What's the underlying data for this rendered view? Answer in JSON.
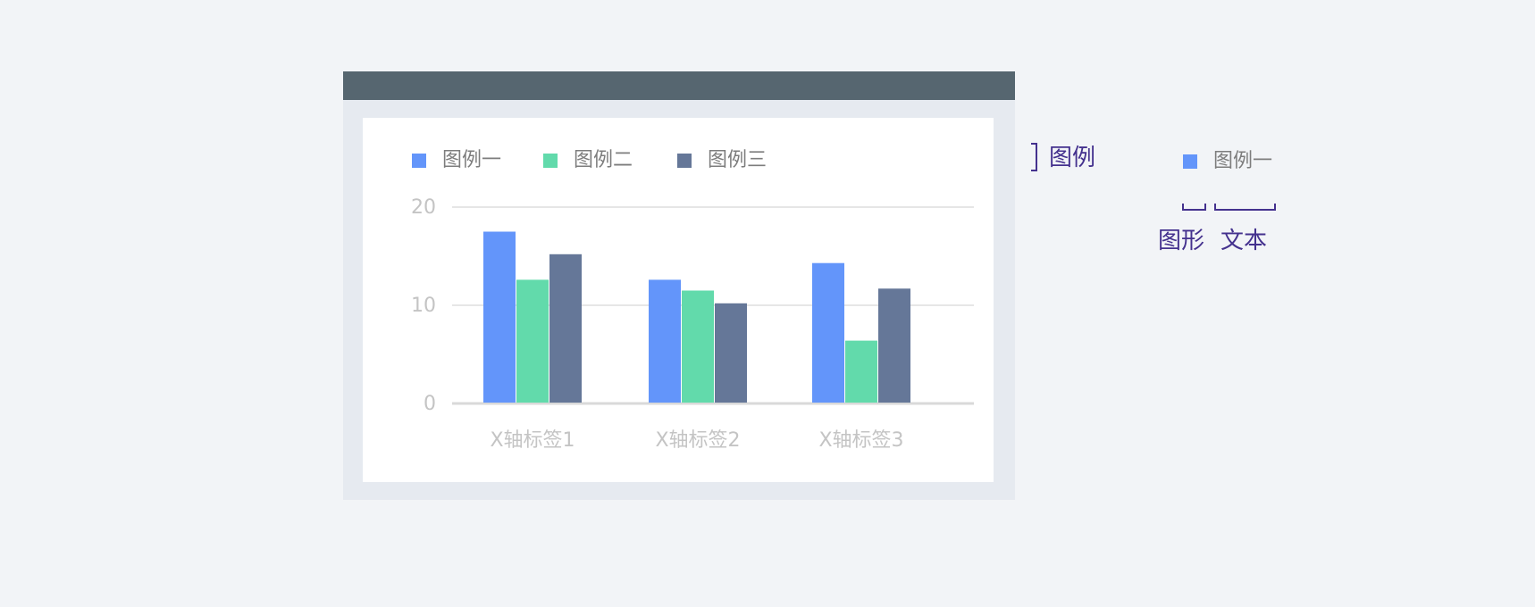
{
  "chart_data": {
    "type": "bar",
    "categories": [
      "X轴标签1",
      "X轴标签2",
      "X轴标签3"
    ],
    "series": [
      {
        "name": "图例一",
        "values": [
          17.5,
          12.6,
          14.3
        ],
        "color": "#6395fa"
      },
      {
        "name": "图例二",
        "values": [
          12.6,
          11.5,
          6.4
        ],
        "color": "#62daab"
      },
      {
        "name": "图例三",
        "values": [
          15.2,
          10.2,
          11.7
        ],
        "color": "#657798"
      }
    ],
    "y_ticks": [
      "0",
      "10",
      "20"
    ],
    "ylim": [
      0,
      21
    ],
    "grid": true,
    "legend_position": "top-left"
  },
  "annotations": {
    "legend_label": "图例",
    "example_legend_text": "图例一",
    "example_legend_color": "#6395fa",
    "shape_label": "图形",
    "text_label": "文本",
    "annotation_color": "#44318e"
  }
}
